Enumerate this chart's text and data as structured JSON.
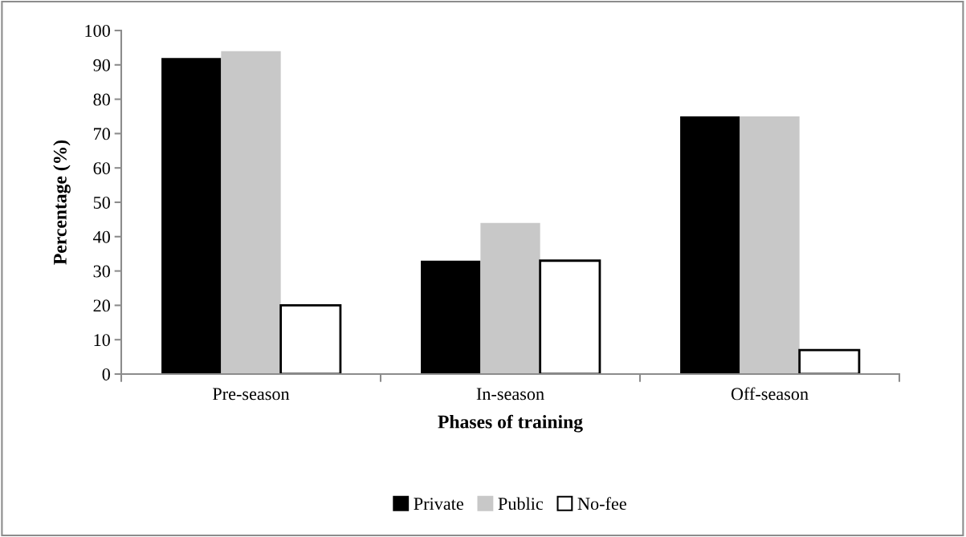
{
  "chart_data": {
    "type": "bar",
    "xlabel": "Phases of training",
    "ylabel": "Percentage (%)",
    "categories": [
      "Pre-season",
      "In-season",
      "Off-season"
    ],
    "series": [
      {
        "name": "Private",
        "color": "#000000",
        "values": [
          92,
          33,
          75
        ]
      },
      {
        "name": "Public",
        "color": "#c8c8c8",
        "values": [
          94,
          44,
          75
        ]
      },
      {
        "name": "No-fee",
        "color": "#ffffff",
        "values": [
          20,
          33,
          7
        ]
      }
    ],
    "ylim": [
      0,
      100
    ],
    "yticks": [
      0,
      10,
      20,
      30,
      40,
      50,
      60,
      70,
      80,
      90,
      100
    ],
    "grid": false,
    "legend": "bottom"
  }
}
